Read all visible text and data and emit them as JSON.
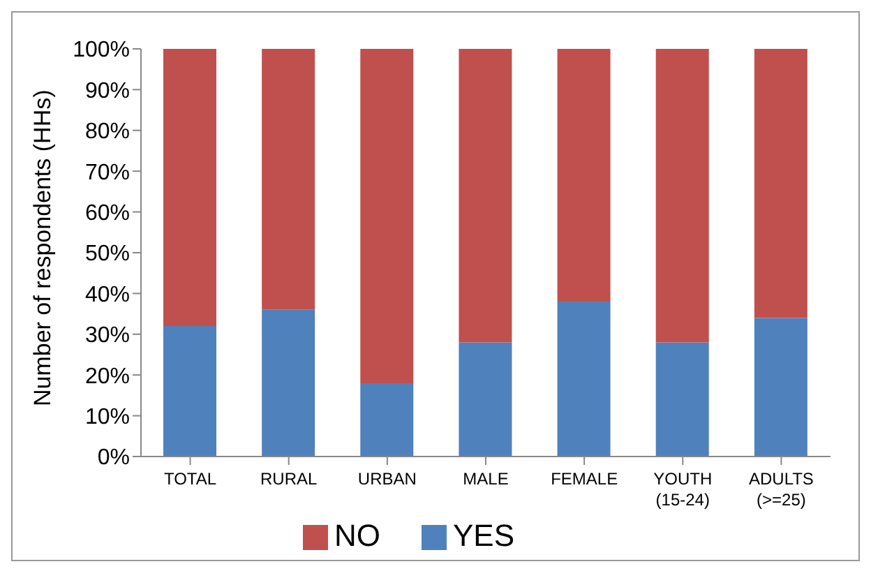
{
  "chart_data": {
    "type": "bar",
    "stacked": true,
    "ylabel": "Number of respondents (HHs)",
    "categories": [
      "TOTAL",
      "RURAL",
      "URBAN",
      "MALE",
      "FEMALE",
      "YOUTH\n(15-24)",
      "ADULTS\n(>=25)"
    ],
    "series": [
      {
        "name": "YES",
        "color": "#4f81bd",
        "values": [
          32,
          36,
          18,
          28,
          38,
          28,
          34
        ]
      },
      {
        "name": "NO",
        "color": "#c0504d",
        "values": [
          68,
          64,
          82,
          72,
          62,
          72,
          66
        ]
      }
    ],
    "ylim": [
      0,
      100
    ],
    "yticks": [
      {
        "value": 0,
        "label": "0%"
      },
      {
        "value": 10,
        "label": "10%"
      },
      {
        "value": 20,
        "label": "20%"
      },
      {
        "value": 30,
        "label": "30%"
      },
      {
        "value": 40,
        "label": "40%"
      },
      {
        "value": 50,
        "label": "50%"
      },
      {
        "value": 60,
        "label": "60%"
      },
      {
        "value": 70,
        "label": "70%"
      },
      {
        "value": 80,
        "label": "80%"
      },
      {
        "value": 90,
        "label": "90%"
      },
      {
        "value": 100,
        "label": "100%"
      }
    ],
    "grid": false,
    "legend": "bottom"
  }
}
